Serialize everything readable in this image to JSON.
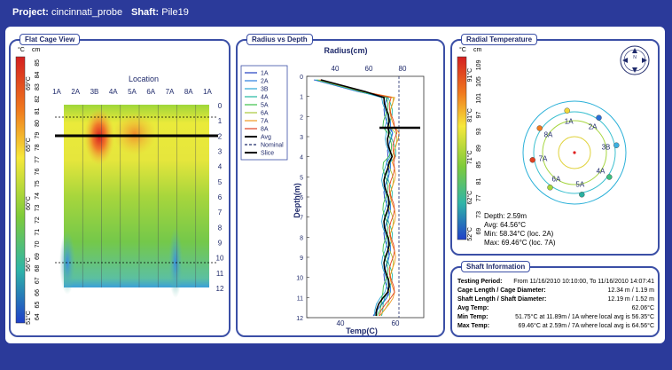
{
  "header": {
    "project_label": "Project:",
    "project_value": "cincinnati_probe",
    "shaft_label": "Shaft:",
    "shaft_value": "Pile19"
  },
  "panels": {
    "flat_cage": {
      "title": "Flat Cage View",
      "location_label": "Location",
      "locations": [
        "1A",
        "2A",
        "3B",
        "4A",
        "5A",
        "6A",
        "7A",
        "8A",
        "1A"
      ],
      "depth_ticks": [
        "0",
        "1",
        "2",
        "3",
        "4",
        "5",
        "6",
        "7",
        "8",
        "9",
        "10",
        "11",
        "12"
      ],
      "unit_c": "°C",
      "unit_cm": "cm",
      "cm_scale": [
        "85",
        "84",
        "83",
        "82",
        "81",
        "80",
        "79",
        "78",
        "77",
        "76",
        "75",
        "74",
        "73",
        "72",
        "71",
        "70",
        "69",
        "68",
        "67",
        "66",
        "65",
        "64"
      ],
      "temp_scale": [
        "69°C",
        "65°C",
        "60°C",
        "56°C",
        "51°C"
      ]
    },
    "radius_depth": {
      "title": "Radius vs Depth",
      "top_axis_label": "Radius(cm)",
      "top_ticks": [
        "40",
        "60",
        "80"
      ],
      "bottom_axis_label": "Temp(C)",
      "bottom_ticks": [
        "40",
        "60"
      ],
      "y_axis_label": "Depth(m)",
      "y_ticks": [
        "0",
        "1",
        "2",
        "3",
        "4",
        "5",
        "6",
        "7",
        "8",
        "9",
        "10",
        "11",
        "12"
      ],
      "legend": [
        {
          "name": "1A",
          "color": "#1f3fc0"
        },
        {
          "name": "2A",
          "color": "#2b7fe0"
        },
        {
          "name": "3B",
          "color": "#29a6d6"
        },
        {
          "name": "4A",
          "color": "#22b8a0"
        },
        {
          "name": "5A",
          "color": "#3cc04a"
        },
        {
          "name": "6A",
          "color": "#a8c83a"
        },
        {
          "name": "7A",
          "color": "#f09a20"
        },
        {
          "name": "8A",
          "color": "#e04020"
        },
        {
          "name": "Avg",
          "color": "#000000"
        },
        {
          "name": "Nominal",
          "color": "#1f2a6b"
        },
        {
          "name": "Slice",
          "color": "#000000"
        }
      ]
    },
    "radial_temp": {
      "title": "Radial Temperature",
      "unit_c": "°C",
      "unit_cm": "cm",
      "cm_scale": [
        "109",
        "105",
        "101",
        "97",
        "93",
        "89",
        "85",
        "81",
        "77",
        "73",
        "69"
      ],
      "temp_scale": [
        "91°C",
        "81°C",
        "71°C",
        "62°C",
        "52°C"
      ],
      "locations": [
        "1A",
        "2A",
        "3B",
        "4A",
        "5A",
        "6A",
        "7A",
        "8A"
      ],
      "depth_text": "Depth: 2.59m",
      "avg_text": "Avg: 64.56°C",
      "min_text": "Min: 58.34°C (loc. 2A)",
      "max_text": "Max: 69.46°C (loc. 7A)"
    },
    "shaft_info": {
      "title": "Shaft Information",
      "rows": [
        {
          "label": "Testing Period:",
          "value": "From 11/16/2010 10:10:00, To 11/16/2010 14:07:41"
        },
        {
          "label": "Cage Length / Cage Diameter:",
          "value": "12.34 m / 1.19 m"
        },
        {
          "label": "Shaft Length / Shaft Diameter:",
          "value": "12.19 m / 1.52 m"
        },
        {
          "label": "Avg Temp:",
          "value": "62.06°C"
        },
        {
          "label": "Min Temp:",
          "value": "51.75°C at 11.89m / 1A where local avg is 56.35°C"
        },
        {
          "label": "Max Temp:",
          "value": "69.46°C at 2.59m / 7A where local avg is 64.56°C"
        }
      ]
    }
  }
}
